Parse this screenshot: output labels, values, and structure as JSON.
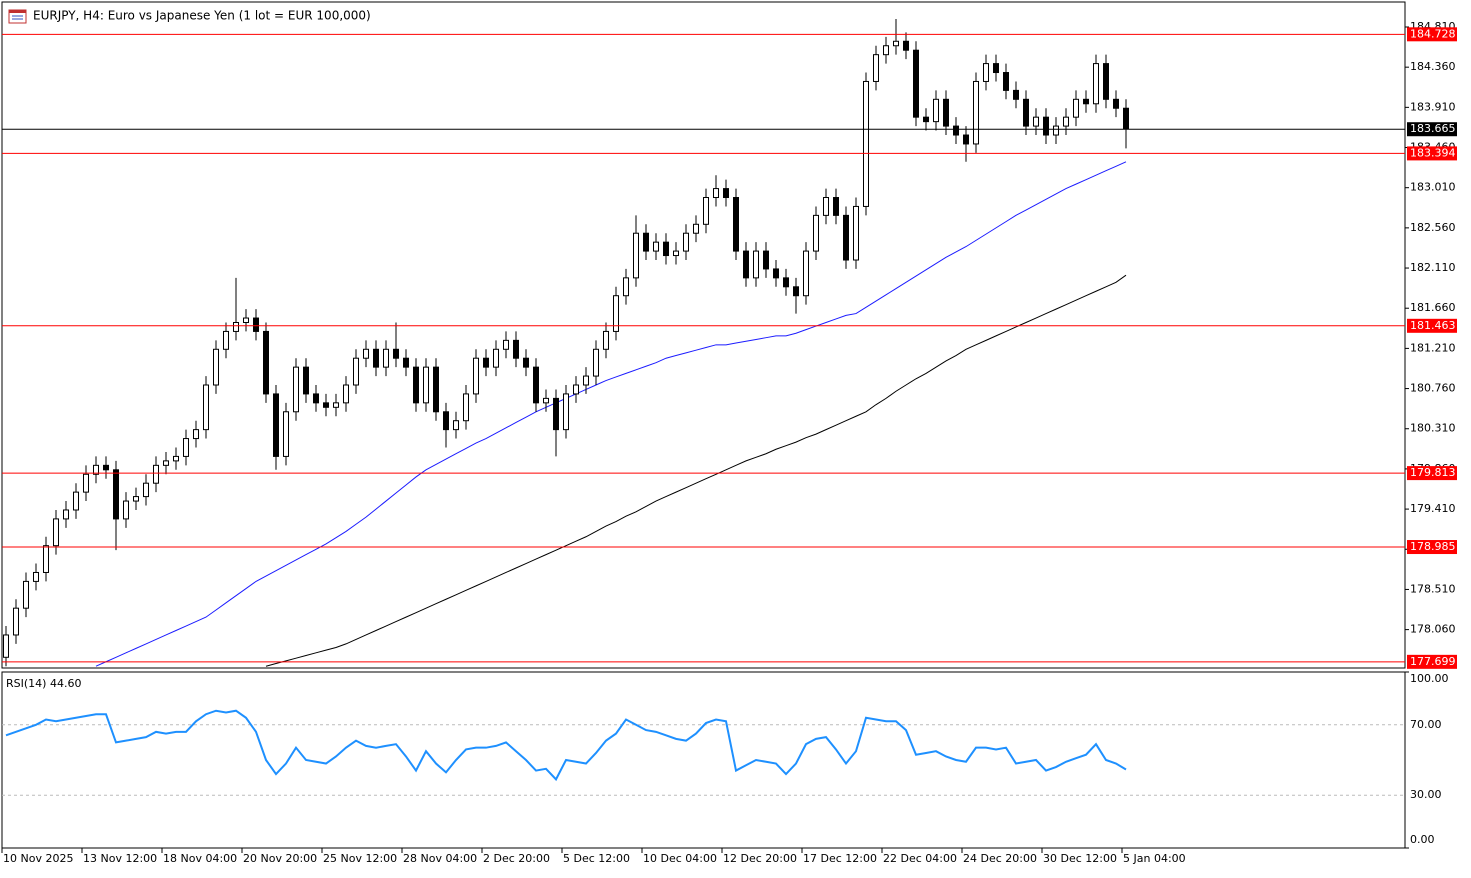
{
  "chart_data": [
    {
      "type": "candlestick",
      "title": "EURJPY, H4:  Euro vs Japanese Yen (1 lot = EUR 100,000)",
      "categories": [
        "10 Nov 2025",
        null,
        null,
        null,
        null,
        null,
        null,
        null,
        "13 Nov 12:00",
        null,
        null,
        null,
        null,
        null,
        null,
        null,
        "18 Nov 04:00",
        null,
        null,
        null,
        null,
        null,
        null,
        null,
        "20 Nov 20:00",
        null,
        null,
        null,
        null,
        null,
        null,
        null,
        "25 Nov 12:00",
        null,
        null,
        null,
        null,
        null,
        null,
        null,
        "28 Nov 04:00",
        null,
        null,
        null,
        null,
        null,
        null,
        null,
        "2 Dec 20:00",
        null,
        null,
        null,
        null,
        null,
        null,
        null,
        "5 Dec 12:00",
        null,
        null,
        null,
        null,
        null,
        null,
        null,
        "10 Dec 04:00",
        null,
        null,
        null,
        null,
        null,
        null,
        null,
        "12 Dec 20:00",
        null,
        null,
        null,
        null,
        null,
        null,
        null,
        "17 Dec 12:00",
        null,
        null,
        null,
        null,
        null,
        null,
        null,
        "22 Dec 04:00",
        null,
        null,
        null,
        null,
        null,
        null,
        null,
        "24 Dec 20:00",
        null,
        null,
        null,
        null,
        null,
        null,
        null,
        "30 Dec 12:00",
        null,
        null,
        null,
        null,
        null,
        null,
        null,
        "5 Jan 04:00"
      ],
      "open": [
        177.75,
        178.0,
        178.3,
        178.6,
        178.7,
        179.0,
        179.3,
        179.4,
        179.6,
        179.8,
        179.9,
        179.85,
        179.3,
        179.5,
        179.55,
        179.7,
        179.9,
        179.95,
        180.0,
        180.2,
        180.3,
        180.8,
        181.2,
        181.4,
        181.5,
        181.55,
        181.4,
        180.7,
        180.0,
        180.5,
        181.0,
        180.7,
        180.6,
        180.55,
        180.6,
        180.8,
        181.1,
        181.2,
        181.0,
        181.2,
        181.1,
        181.0,
        180.6,
        181.0,
        180.5,
        180.3,
        180.4,
        180.7,
        181.1,
        181.0,
        181.2,
        181.3,
        181.1,
        181.0,
        180.6,
        180.65,
        180.3,
        180.7,
        180.8,
        180.9,
        181.2,
        181.4,
        181.8,
        182.0,
        182.5,
        182.3,
        182.4,
        182.25,
        182.3,
        182.5,
        182.6,
        182.9,
        183.0,
        182.9,
        182.3,
        182.0,
        182.3,
        182.1,
        182.0,
        181.9,
        181.8,
        182.3,
        182.7,
        182.9,
        182.7,
        182.2,
        182.8,
        184.2,
        184.5,
        184.6,
        184.65,
        184.55,
        183.8,
        183.75,
        184.0,
        183.7,
        183.6,
        183.5,
        184.2,
        184.4,
        184.3,
        184.1,
        184.0,
        183.7,
        183.8,
        183.6,
        183.7,
        183.8,
        184.0,
        183.95,
        184.4,
        184.0,
        183.9
      ],
      "high": [
        178.1,
        178.4,
        178.7,
        178.8,
        179.1,
        179.4,
        179.5,
        179.7,
        179.9,
        180.0,
        180.0,
        179.95,
        179.6,
        179.65,
        179.8,
        180.0,
        180.05,
        180.1,
        180.3,
        180.4,
        180.9,
        181.3,
        181.5,
        182.0,
        181.65,
        181.65,
        181.5,
        180.8,
        180.6,
        181.1,
        181.1,
        180.8,
        180.7,
        180.7,
        180.9,
        181.2,
        181.3,
        181.3,
        181.3,
        181.5,
        181.2,
        181.1,
        181.1,
        181.1,
        180.6,
        180.5,
        180.8,
        181.2,
        181.2,
        181.3,
        181.4,
        181.4,
        181.2,
        181.1,
        180.75,
        180.75,
        180.8,
        180.9,
        181.0,
        181.3,
        181.5,
        181.9,
        182.1,
        182.7,
        182.6,
        182.5,
        182.5,
        182.4,
        182.6,
        182.7,
        183.0,
        183.15,
        183.1,
        183.0,
        182.4,
        182.4,
        182.4,
        182.2,
        182.1,
        182.0,
        182.4,
        182.8,
        183.0,
        183.0,
        182.8,
        182.9,
        184.3,
        184.6,
        184.7,
        184.9,
        184.75,
        184.65,
        183.9,
        184.1,
        184.1,
        183.8,
        183.7,
        184.3,
        184.5,
        184.5,
        184.4,
        184.2,
        184.1,
        183.9,
        183.9,
        183.8,
        183.9,
        184.1,
        184.1,
        184.5,
        184.5,
        184.1,
        184.0
      ],
      "low": [
        177.65,
        177.9,
        178.2,
        178.5,
        178.6,
        178.9,
        179.2,
        179.3,
        179.5,
        179.7,
        179.75,
        178.95,
        179.2,
        179.4,
        179.45,
        179.6,
        179.8,
        179.85,
        179.9,
        180.1,
        180.2,
        180.7,
        181.1,
        181.3,
        181.4,
        181.3,
        180.6,
        179.85,
        179.9,
        180.4,
        180.6,
        180.5,
        180.45,
        180.45,
        180.5,
        180.7,
        181.0,
        180.9,
        180.9,
        181.0,
        180.9,
        180.5,
        180.5,
        180.4,
        180.1,
        180.2,
        180.3,
        180.6,
        180.9,
        180.9,
        181.1,
        181.0,
        180.9,
        180.5,
        180.5,
        180.0,
        180.2,
        180.6,
        180.7,
        180.8,
        181.1,
        181.3,
        181.7,
        181.9,
        182.2,
        182.2,
        182.15,
        182.15,
        182.2,
        182.4,
        182.5,
        182.8,
        182.8,
        182.2,
        181.9,
        181.9,
        182.0,
        181.9,
        181.8,
        181.6,
        181.7,
        182.2,
        182.6,
        182.6,
        182.1,
        182.1,
        182.7,
        184.1,
        184.4,
        184.5,
        184.45,
        183.7,
        183.65,
        183.65,
        183.6,
        183.5,
        183.3,
        183.4,
        184.1,
        184.2,
        184.0,
        183.9,
        183.6,
        183.6,
        183.5,
        183.5,
        183.6,
        183.7,
        183.85,
        183.85,
        183.9,
        183.8,
        183.45
      ],
      "close": [
        178.0,
        178.3,
        178.6,
        178.7,
        179.0,
        179.3,
        179.4,
        179.6,
        179.8,
        179.9,
        179.85,
        179.3,
        179.5,
        179.55,
        179.7,
        179.9,
        179.95,
        180.0,
        180.2,
        180.3,
        180.8,
        181.2,
        181.4,
        181.5,
        181.55,
        181.4,
        180.7,
        180.0,
        180.5,
        181.0,
        180.7,
        180.6,
        180.55,
        180.6,
        180.8,
        181.1,
        181.2,
        181.0,
        181.2,
        181.1,
        181.0,
        180.6,
        181.0,
        180.5,
        180.3,
        180.4,
        180.7,
        181.1,
        181.0,
        181.2,
        181.3,
        181.1,
        181.0,
        180.6,
        180.65,
        180.3,
        180.7,
        180.8,
        180.9,
        181.2,
        181.4,
        181.8,
        182.0,
        182.5,
        182.3,
        182.4,
        182.25,
        182.3,
        182.5,
        182.6,
        182.9,
        183.0,
        182.9,
        182.3,
        182.0,
        182.3,
        182.1,
        182.0,
        181.9,
        181.8,
        182.3,
        182.7,
        182.9,
        182.7,
        182.2,
        182.8,
        184.2,
        184.5,
        184.6,
        184.65,
        184.55,
        183.8,
        183.75,
        184.0,
        183.7,
        183.6,
        183.5,
        184.2,
        184.4,
        184.3,
        184.1,
        184.0,
        183.7,
        183.8,
        183.6,
        183.7,
        183.8,
        184.0,
        183.95,
        184.4,
        184.0,
        183.9,
        183.67
      ],
      "series": [
        {
          "color": "#1c1cff",
          "values": [
            null,
            null,
            null,
            null,
            null,
            null,
            null,
            null,
            null,
            177.65,
            177.7,
            177.75,
            177.8,
            177.85,
            177.9,
            177.95,
            178.0,
            178.05,
            178.1,
            178.15,
            178.2,
            178.28,
            178.36,
            178.44,
            178.52,
            178.6,
            178.66,
            178.72,
            178.78,
            178.84,
            178.9,
            178.96,
            179.02,
            179.09,
            179.16,
            179.24,
            179.32,
            179.41,
            179.5,
            179.59,
            179.68,
            179.77,
            179.85,
            179.91,
            179.97,
            180.03,
            180.09,
            180.15,
            180.2,
            180.26,
            180.32,
            180.38,
            180.44,
            180.5,
            180.55,
            180.6,
            180.65,
            180.7,
            180.75,
            180.8,
            180.85,
            180.89,
            180.93,
            180.97,
            181.01,
            181.05,
            181.1,
            181.13,
            181.16,
            181.19,
            181.22,
            181.25,
            181.25,
            181.27,
            181.29,
            181.31,
            181.33,
            181.35,
            181.35,
            181.38,
            181.42,
            181.46,
            181.5,
            181.54,
            181.58,
            181.6,
            181.67,
            181.74,
            181.81,
            181.88,
            181.95,
            182.02,
            182.09,
            182.16,
            182.23,
            182.29,
            182.35,
            182.42,
            182.49,
            182.56,
            182.63,
            182.7,
            182.76,
            182.82,
            182.88,
            182.94,
            183.0,
            183.05,
            183.1,
            183.15,
            183.2,
            183.25,
            183.3
          ]
        },
        {
          "color": "#000000",
          "values": [
            null,
            null,
            null,
            null,
            null,
            null,
            null,
            null,
            null,
            null,
            null,
            null,
            null,
            null,
            null,
            null,
            null,
            null,
            null,
            null,
            null,
            null,
            null,
            null,
            null,
            null,
            177.65,
            177.68,
            177.71,
            177.74,
            177.77,
            177.8,
            177.83,
            177.86,
            177.9,
            177.95,
            178.0,
            178.05,
            178.1,
            178.15,
            178.2,
            178.25,
            178.3,
            178.35,
            178.4,
            178.45,
            178.5,
            178.55,
            178.6,
            178.65,
            178.7,
            178.75,
            178.8,
            178.85,
            178.9,
            178.95,
            179.0,
            179.05,
            179.1,
            179.16,
            179.22,
            179.27,
            179.33,
            179.38,
            179.44,
            179.5,
            179.55,
            179.6,
            179.65,
            179.7,
            179.75,
            179.8,
            179.85,
            179.9,
            179.95,
            179.99,
            180.03,
            180.08,
            180.12,
            180.16,
            180.21,
            180.25,
            180.3,
            180.35,
            180.4,
            180.45,
            180.5,
            180.58,
            180.65,
            180.73,
            180.8,
            180.87,
            180.93,
            181.0,
            181.07,
            181.13,
            181.2,
            181.25,
            181.3,
            181.35,
            181.4,
            181.45,
            181.5,
            181.55,
            181.6,
            181.65,
            181.7,
            181.75,
            181.8,
            181.85,
            181.9,
            181.95,
            182.03
          ]
        }
      ],
      "levels": [
        184.728,
        183.394,
        181.463,
        179.813,
        178.985,
        177.699
      ],
      "level_color": "#ff0000",
      "last_price": 183.665,
      "ylim": [
        177.63,
        185.09
      ],
      "yticks": [
        {
          "value": 184.81,
          "label": "184.810"
        },
        {
          "value": 184.36,
          "label": "184.360"
        },
        {
          "value": 183.91,
          "label": "183.910"
        },
        {
          "value": 183.46,
          "label": "183.460"
        },
        {
          "value": 183.01,
          "label": "183.010"
        },
        {
          "value": 182.56,
          "label": "182.560"
        },
        {
          "value": 182.11,
          "label": "182.110"
        },
        {
          "value": 181.66,
          "label": "181.660"
        },
        {
          "value": 181.21,
          "label": "181.210"
        },
        {
          "value": 180.76,
          "label": "180.760"
        },
        {
          "value": 180.31,
          "label": "180.310"
        },
        {
          "value": 179.86,
          "label": "179.860"
        },
        {
          "value": 179.41,
          "label": "179.410"
        },
        {
          "value": 178.96,
          "label": "178.960"
        },
        {
          "value": 178.51,
          "label": "178.510"
        },
        {
          "value": 178.06,
          "label": "178.060"
        }
      ]
    },
    {
      "type": "line",
      "title": "RSI(14) 44.60",
      "color": "#1e90ff",
      "values": [
        64,
        66,
        68,
        70,
        73,
        72,
        73,
        74,
        75,
        76,
        76,
        60,
        61,
        62,
        63,
        66,
        65,
        66,
        66,
        72,
        76,
        78,
        77,
        78,
        74,
        66,
        50,
        42,
        48,
        57,
        50,
        49,
        48,
        52,
        57,
        61,
        58,
        57,
        58,
        59,
        52,
        44,
        55,
        48,
        43,
        50,
        56,
        57,
        57,
        58,
        60,
        55,
        50,
        44,
        45,
        39,
        50,
        49,
        48,
        54,
        61,
        65,
        73,
        70,
        67,
        66,
        64,
        62,
        61,
        65,
        71,
        73,
        72,
        44,
        47,
        50,
        49,
        48,
        42,
        48,
        59,
        62,
        63,
        56,
        48,
        55,
        74,
        73,
        72,
        72,
        67,
        53,
        54,
        55,
        52,
        50,
        49,
        57,
        57,
        56,
        57,
        48,
        49,
        50,
        44,
        46,
        49,
        51,
        53,
        59,
        50,
        48,
        44.6
      ],
      "ylim": [
        0,
        100
      ],
      "yticks": [
        {
          "value": 100,
          "label": "100.00"
        },
        {
          "value": 70,
          "label": "70.00"
        },
        {
          "value": 30,
          "label": "30.00"
        },
        {
          "value": 0,
          "label": "0.00"
        }
      ]
    }
  ]
}
